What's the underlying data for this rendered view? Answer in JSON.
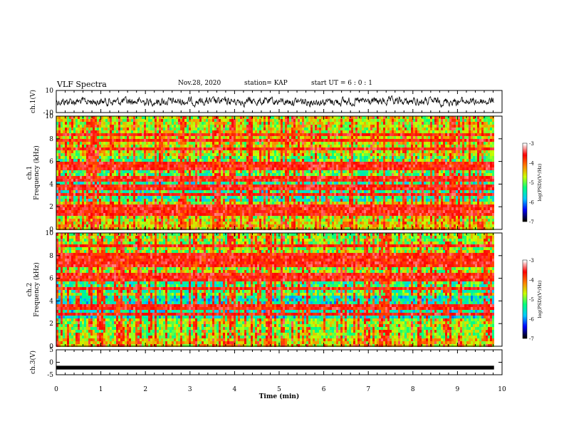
{
  "header": {
    "title": "VLF Spectra",
    "date": "Nov.28, 2020",
    "station": "station= KAP",
    "start": "start  UT =   6 : 0  : 1"
  },
  "chart_data": [
    {
      "type": "line",
      "panel": "ch1-waveform",
      "ylabel": "ch.1(V)",
      "ylim": [
        -10,
        10
      ],
      "yticks": [
        "10",
        "-10"
      ],
      "xlim": [
        0,
        10
      ]
    },
    {
      "type": "heatmap",
      "panel": "ch1-spectrogram",
      "ylabel": "ch.1\nFrequency (kHz)",
      "ylim": [
        0,
        10
      ],
      "yticks": [
        "0",
        "2",
        "4",
        "6",
        "8",
        "10"
      ],
      "xlim": [
        0,
        10
      ],
      "colorbar": {
        "label": "log(PSD)(V²/Hz)",
        "range": [
          -7,
          -3
        ],
        "ticks": [
          "-3",
          "-4",
          "-5",
          "-6",
          "-7"
        ]
      }
    },
    {
      "type": "heatmap",
      "panel": "ch2-spectrogram",
      "ylabel": "ch.2\nFrequency (kHz)",
      "ylim": [
        0,
        10
      ],
      "yticks": [
        "0",
        "2",
        "4",
        "6",
        "8",
        "10"
      ],
      "xlim": [
        0,
        10
      ],
      "colorbar": {
        "label": "log(PSD)(V²/Hz)",
        "range": [
          -7,
          -3
        ],
        "ticks": [
          "-3",
          "-4",
          "-5",
          "-6",
          "-7"
        ]
      }
    },
    {
      "type": "line",
      "panel": "ch3-waveform",
      "ylabel": "ch.3(V)",
      "ylim": [
        -5,
        5
      ],
      "yticks": [
        "5",
        "0",
        "-5"
      ],
      "xlim": [
        0,
        10
      ],
      "xlabel": "Time (min)",
      "xticks": [
        "0",
        "1",
        "2",
        "3",
        "4",
        "5",
        "6",
        "7",
        "8",
        "9",
        "10"
      ]
    }
  ],
  "colors": {
    "frame": "#000000",
    "colormap": [
      "#000000",
      "#0000ff",
      "#00c8ff",
      "#00ff80",
      "#c8ff00",
      "#ff8000",
      "#ff0000",
      "#ffffff"
    ]
  }
}
